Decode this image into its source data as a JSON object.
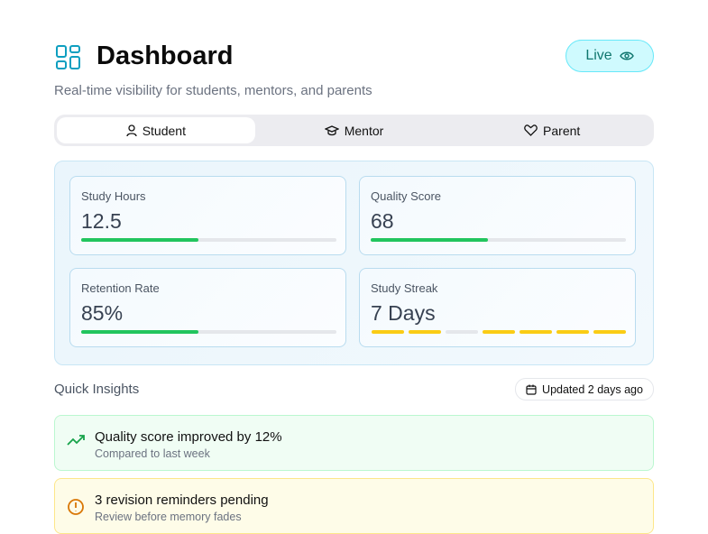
{
  "header": {
    "title": "Dashboard",
    "subtitle": "Real-time visibility for students, mentors, and parents",
    "status": "Live"
  },
  "tabs": [
    "Student",
    "Mentor",
    "Parent"
  ],
  "metrics": [
    {
      "label": "Study Hours",
      "value": "12.5"
    },
    {
      "label": "Quality Score",
      "value": "68"
    },
    {
      "label": "Retention Rate",
      "value": "85%"
    },
    {
      "label": "Study Streak",
      "value": "7 Days"
    }
  ],
  "insights": {
    "title": "Quick Insights",
    "updated": "Updated 2 days ago"
  },
  "alerts": [
    {
      "title": "Quality score improved by 12%",
      "detail": "Compared to last week"
    },
    {
      "title": "3 revision reminders pending",
      "detail": "Review before memory fades"
    }
  ]
}
